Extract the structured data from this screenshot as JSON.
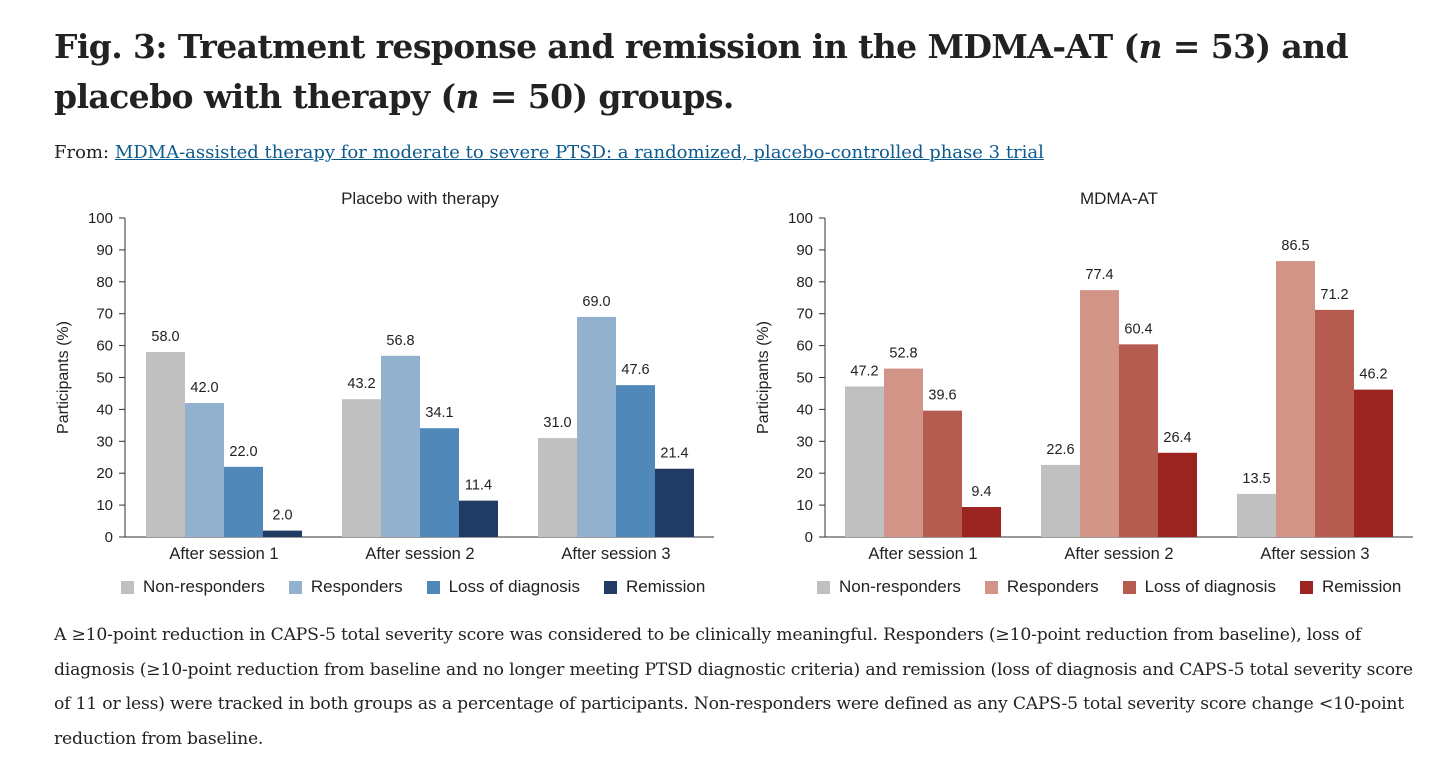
{
  "figure": {
    "title_prefix": "Fig. 3: Treatment response and remission in the MDMA-AT (",
    "title_n1_var": "n",
    "title_n1_val": " = 53) and placebo with therapy (",
    "title_n2_var": "n",
    "title_n2_val": " = 50) groups.",
    "from_label": "From:",
    "from_link": "MDMA-assisted therapy for moderate to severe PTSD: a randomized, placebo-controlled phase 3 trial",
    "caption": "A ≥10-point reduction in CAPS-5 total severity score was considered to be clinically meaningful. Responders (≥10-point reduction from baseline), loss of diagnosis (≥10-point reduction from baseline and no longer meeting PTSD diagnostic criteria) and remission (loss of diagnosis and CAPS-5 total severity score of 11 or less) were tracked in both groups as a percentage of participants. Non-responders were defined as any CAPS-5 total severity score change <10-point reduction from baseline."
  },
  "chart_data": [
    {
      "type": "bar",
      "title": "Placebo with therapy",
      "ylabel": "Participants (%)",
      "xlabel": "",
      "ylim": [
        0,
        100
      ],
      "yticks": [
        0,
        10,
        20,
        30,
        40,
        50,
        60,
        70,
        80,
        90,
        100
      ],
      "categories": [
        "After session 1",
        "After session 2",
        "After session 3"
      ],
      "legend_position": "bottom",
      "series": [
        {
          "name": "Non-responders",
          "color": "#c0c0c0",
          "values": [
            58.0,
            43.2,
            31.0
          ],
          "labels": [
            "58.0",
            "43.2",
            "31.0"
          ]
        },
        {
          "name": "Responders",
          "color": "#92b1cf",
          "values": [
            42.0,
            56.8,
            69.0
          ],
          "labels": [
            "42.0",
            "56.8",
            "69.0"
          ]
        },
        {
          "name": "Loss of diagnosis",
          "color": "#4f88b9",
          "values": [
            22.0,
            34.1,
            47.6
          ],
          "labels": [
            "22.0",
            "34.1",
            "47.6"
          ]
        },
        {
          "name": "Remission",
          "color": "#203c64",
          "values": [
            2.0,
            11.4,
            21.4
          ],
          "labels": [
            "2.0",
            "11.4",
            "21.4"
          ]
        }
      ]
    },
    {
      "type": "bar",
      "title": "MDMA-AT",
      "ylabel": "Participants (%)",
      "xlabel": "",
      "ylim": [
        0,
        100
      ],
      "yticks": [
        0,
        10,
        20,
        30,
        40,
        50,
        60,
        70,
        80,
        90,
        100
      ],
      "categories": [
        "After session 1",
        "After session 2",
        "After session 3"
      ],
      "legend_position": "bottom",
      "series": [
        {
          "name": "Non-responders",
          "color": "#c0c0c0",
          "values": [
            47.2,
            22.6,
            13.5
          ],
          "labels": [
            "47.2",
            "22.6",
            "13.5"
          ]
        },
        {
          "name": "Responders",
          "color": "#d39488",
          "values": [
            52.8,
            77.4,
            86.5
          ],
          "labels": [
            "52.8",
            "77.4",
            "86.5"
          ]
        },
        {
          "name": "Loss of diagnosis",
          "color": "#b65b50",
          "values": [
            39.6,
            60.4,
            71.2
          ],
          "labels": [
            "39.6",
            "60.4",
            "71.2"
          ]
        },
        {
          "name": "Remission",
          "color": "#9c2420",
          "values": [
            9.4,
            26.4,
            46.2
          ],
          "labels": [
            "9.4",
            "26.4",
            "46.2"
          ]
        }
      ]
    }
  ]
}
